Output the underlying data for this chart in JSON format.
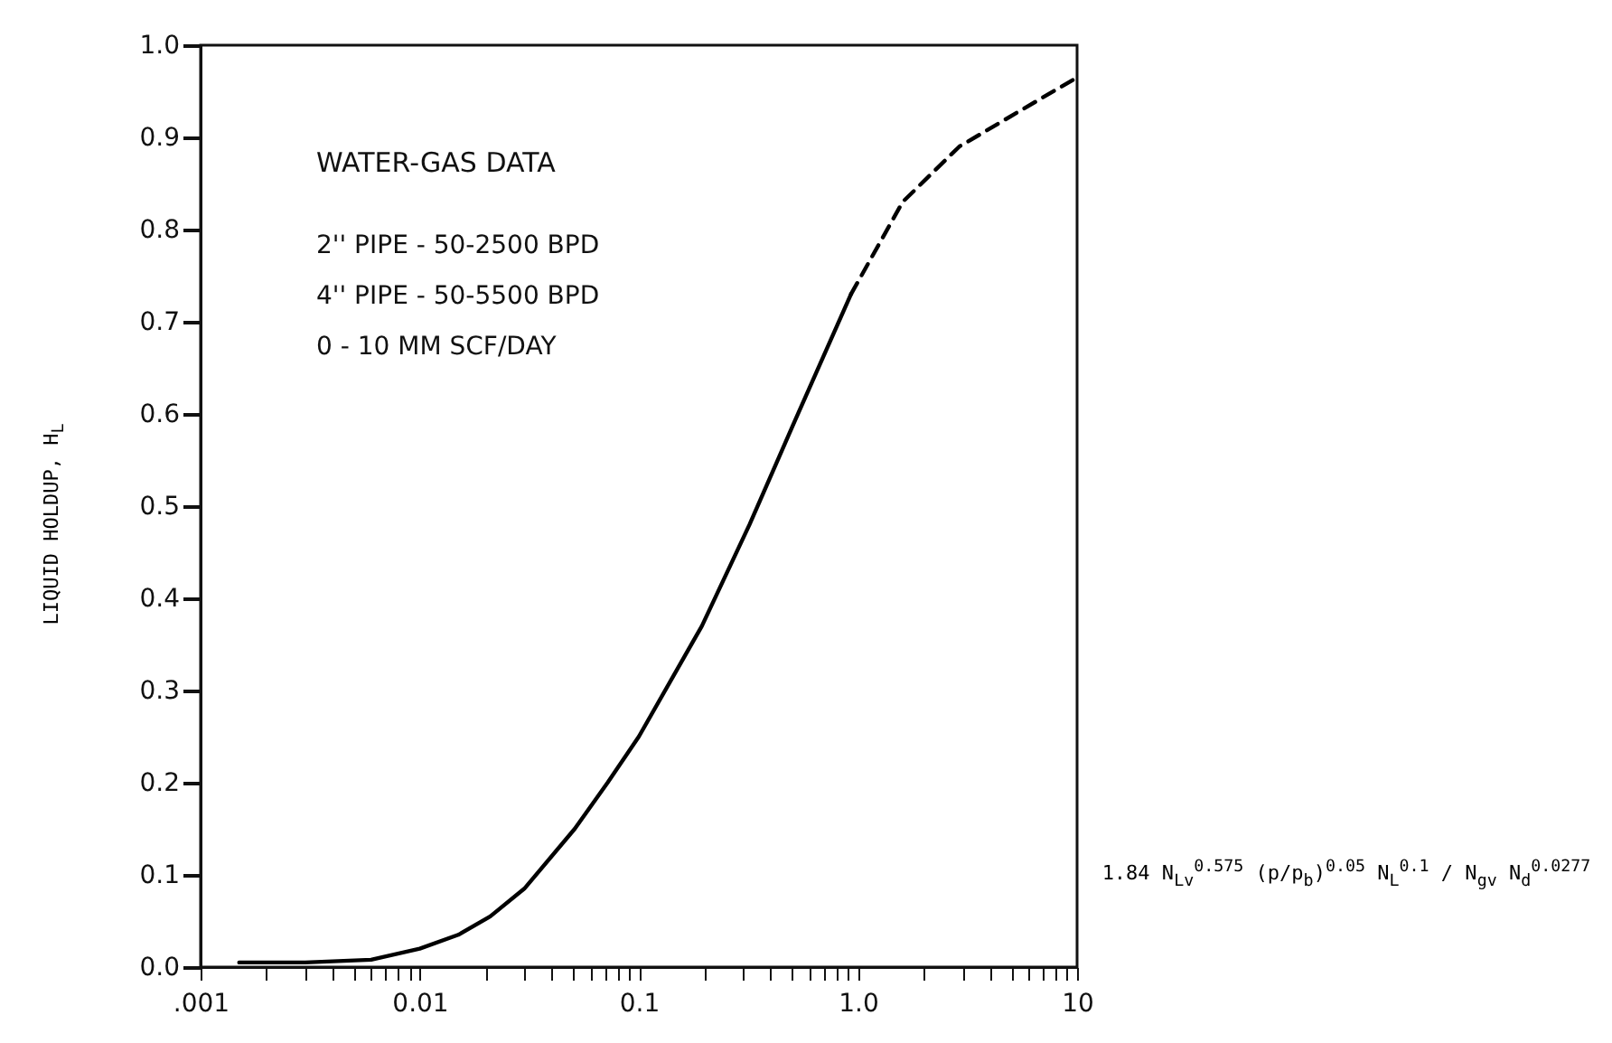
{
  "chart_data": {
    "type": "line",
    "xlabel": "1.84 N$_{Lv}$$^{0.575}$ (p/p$_{b}$)$^{0.05}$ N$_{L}$$^{0.1}$ / N$_{gv}$ N$_{d}$$^{0.0277}$",
    "ylabel": "LIQUID HOLDUP, H$_{L}$",
    "annotations": [
      "WATER-GAS DATA",
      "2'' PIPE - 50-2500 BPD",
      "4'' PIPE - 50-5500 BPD",
      "0 - 10 MM SCF/DAY"
    ],
    "log": "x",
    "xlim": [
      0.001,
      10
    ],
    "ylim": [
      0,
      1
    ],
    "xticks": [
      {
        "value": 0.001,
        "label": ".001"
      },
      {
        "value": 0.002,
        "label": null
      },
      {
        "value": 0.003,
        "label": null
      },
      {
        "value": 0.004,
        "label": null
      },
      {
        "value": 0.005,
        "label": null
      },
      {
        "value": 0.006,
        "label": null
      },
      {
        "value": 0.007,
        "label": null
      },
      {
        "value": 0.008,
        "label": null
      },
      {
        "value": 0.009,
        "label": null
      },
      0.01,
      {
        "value": 0.02,
        "label": null
      },
      {
        "value": 0.03,
        "label": null
      },
      {
        "value": 0.04,
        "label": null
      },
      {
        "value": 0.05,
        "label": null
      },
      {
        "value": 0.06,
        "label": null
      },
      {
        "value": 0.07,
        "label": null
      },
      {
        "value": 0.08,
        "label": null
      },
      {
        "value": 0.09,
        "label": null
      },
      0.1,
      {
        "value": 0.2,
        "label": null
      },
      {
        "value": 0.3,
        "label": null
      },
      {
        "value": 0.4,
        "label": null
      },
      {
        "value": 0.5,
        "label": null
      },
      {
        "value": 0.6,
        "label": null
      },
      {
        "value": 0.7,
        "label": null
      },
      {
        "value": 0.8,
        "label": null
      },
      {
        "value": 0.9,
        "label": null
      },
      {
        "value": 1,
        "label": "1.0"
      },
      {
        "value": 2,
        "label": null
      },
      {
        "value": 3,
        "label": null
      },
      {
        "value": 4,
        "label": null
      },
      {
        "value": 5,
        "label": null
      },
      {
        "value": 6,
        "label": null
      },
      {
        "value": 7,
        "label": null
      },
      {
        "value": 8,
        "label": null
      },
      {
        "value": 9,
        "label": null
      },
      10
    ],
    "yticks": [
      {
        "value": 0,
        "label": "0.0"
      },
      0.1,
      0.2,
      0.3,
      0.4,
      0.5,
      0.6,
      0.7,
      0.8,
      0.9,
      {
        "value": 1,
        "label": "1.0"
      }
    ],
    "series": [
      {
        "color": "#000000",
        "line_style": "solid",
        "x": [
          0.0015,
          0.003,
          0.006,
          0.01,
          0.015,
          0.021,
          0.03,
          0.051,
          0.072,
          0.1,
          0.194,
          0.32,
          0.51,
          0.93
        ],
        "values": [
          0.005,
          0.005,
          0.008,
          0.02,
          0.035,
          0.055,
          0.085,
          0.15,
          0.2,
          0.25,
          0.37,
          0.48,
          0.59,
          0.73
        ]
      },
      {
        "color": "#000000",
        "line_style": "dashed",
        "x": [
          0.93,
          1.6,
          2.9,
          5.6,
          10
        ],
        "values": [
          0.73,
          0.83,
          0.89,
          0.93,
          0.965
        ]
      }
    ]
  }
}
